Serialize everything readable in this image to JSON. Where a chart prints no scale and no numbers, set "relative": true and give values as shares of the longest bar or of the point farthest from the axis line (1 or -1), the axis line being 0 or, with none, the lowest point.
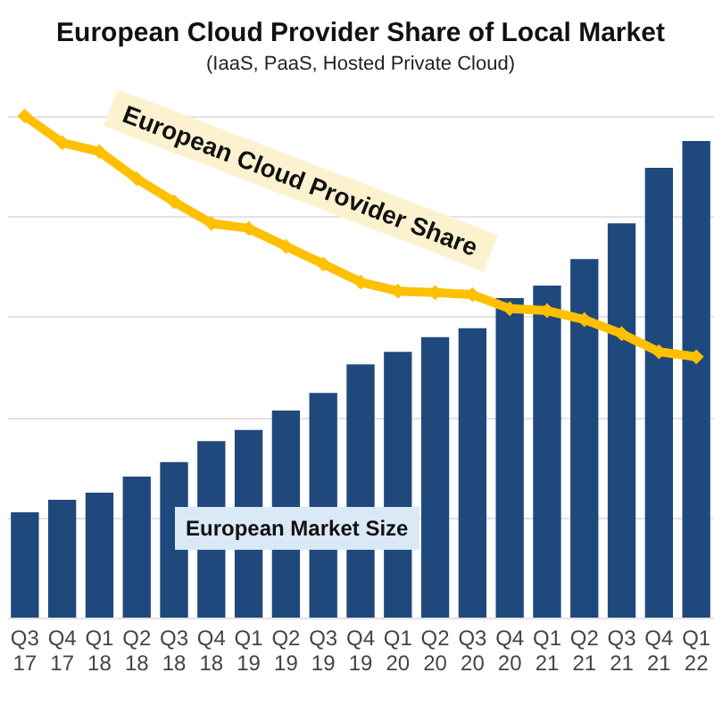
{
  "chart_data": {
    "type": "bar",
    "title": "European Cloud Provider Share of Local Market",
    "subtitle": "(IaaS, PaaS, Hosted Private Cloud)",
    "categories": [
      "Q3 17",
      "Q4 17",
      "Q1 18",
      "Q2 18",
      "Q3 18",
      "Q4 18",
      "Q1 19",
      "Q2 19",
      "Q3 19",
      "Q4 19",
      "Q1 20",
      "Q2 20",
      "Q3 20",
      "Q4 20",
      "Q1 21",
      "Q2 21",
      "Q3 21",
      "Q4 21",
      "Q1 22"
    ],
    "relative": true,
    "grid": "y",
    "series": [
      {
        "name": "European Market Size",
        "type": "bar",
        "color": "#1f497d",
        "values": [
          0.21,
          0.235,
          0.249,
          0.281,
          0.31,
          0.352,
          0.374,
          0.413,
          0.448,
          0.505,
          0.53,
          0.559,
          0.577,
          0.637,
          0.662,
          0.715,
          0.786,
          0.897,
          0.95
        ]
      },
      {
        "name": "European Cloud Provider Share",
        "type": "line",
        "color": "#ffc000",
        "marker": "diamond",
        "values": [
          1,
          0.947,
          0.929,
          0.875,
          0.829,
          0.786,
          0.776,
          0.74,
          0.705,
          0.669,
          0.651,
          0.648,
          0.644,
          0.616,
          0.612,
          0.594,
          0.566,
          0.53,
          0.52
        ]
      }
    ]
  }
}
